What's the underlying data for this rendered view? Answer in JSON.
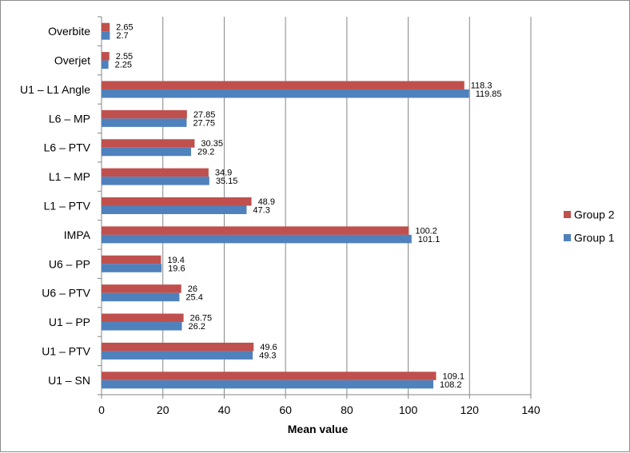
{
  "chart_data": {
    "type": "bar",
    "orientation": "horizontal",
    "categories": [
      "Overbite",
      "Overjet",
      "U1 – L1 Angle",
      "L6 – MP",
      "L6 – PTV",
      "L1 – MP",
      "L1 – PTV",
      "IMPA",
      "U6 – PP",
      "U6 – PTV",
      "U1 – PP",
      "U1 – PTV",
      "U1 – SN"
    ],
    "series": [
      {
        "name": "Group 2",
        "color": "#c0504d",
        "values": [
          2.65,
          2.55,
          118.3,
          27.85,
          30.35,
          34.9,
          48.9,
          100.2,
          19.4,
          26,
          26.75,
          49.6,
          109.1
        ],
        "value_labels": [
          "2.65",
          "2.55",
          "118.3",
          "27.85",
          "30.35",
          "34.9",
          "48.9",
          "100.2",
          "19.4",
          "26",
          "26.75",
          "49.6",
          "109.1"
        ]
      },
      {
        "name": "Group 1",
        "color": "#4f81bd",
        "values": [
          2.7,
          2.25,
          119.85,
          27.75,
          29.2,
          35.15,
          47.3,
          101.1,
          19.6,
          25.4,
          26.2,
          49.3,
          108.2
        ],
        "value_labels": [
          "2.7",
          "2.25",
          "119.85",
          "27.75",
          "29.2",
          "35.15",
          "47.3",
          "101.1",
          "19.6",
          "25.4",
          "26.2",
          "49.3",
          "108.2"
        ]
      }
    ],
    "title": "",
    "xlabel": "Mean value",
    "ylabel": "",
    "xlim": [
      0,
      140
    ],
    "xticks": [
      0,
      20,
      40,
      60,
      80,
      100,
      120,
      140
    ],
    "grid": true,
    "legend_position": "right"
  }
}
